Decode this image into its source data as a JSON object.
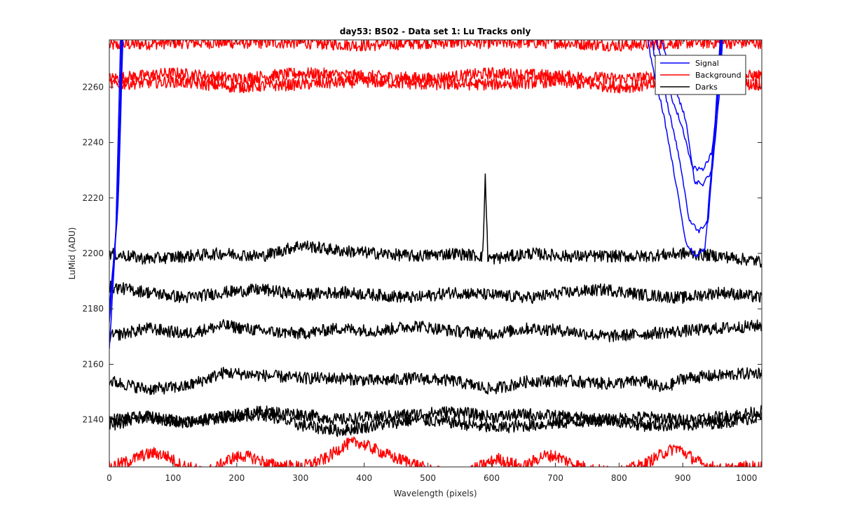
{
  "chart_data": {
    "type": "line",
    "title": "day53: BS02 - Data set 1: Lu Tracks only",
    "xlabel": "Wavelength (pixels)",
    "ylabel": "LuMid (ADU)",
    "xlim": [
      0,
      1024
    ],
    "ylim": [
      2123,
      2277
    ],
    "xticks": [
      0,
      100,
      200,
      300,
      400,
      500,
      600,
      700,
      800,
      900,
      1000
    ],
    "yticks": [
      2140,
      2160,
      2180,
      2200,
      2220,
      2240,
      2260
    ],
    "grid": false,
    "legend": {
      "placement": "top-right",
      "entries": [
        {
          "name": "Signal",
          "color": "#0000ff"
        },
        {
          "name": "Background",
          "color": "#ff0000"
        },
        {
          "name": "Darks",
          "color": "#000000"
        }
      ]
    },
    "series": [
      {
        "legend": "Signal",
        "color": "#0000ff",
        "x": [
          0,
          10,
          20,
          830,
          850,
          870,
          890,
          905,
          920,
          935,
          950,
          965
        ],
        "y": [
          2165,
          2205,
          2300,
          2300,
          2270,
          2250,
          2224,
          2204,
          2199,
          2202,
          2245,
          2300
        ]
      },
      {
        "legend": "Signal",
        "color": "#0000ff",
        "x": [
          0,
          12,
          22,
          835,
          855,
          875,
          895,
          910,
          925,
          940,
          952,
          966
        ],
        "y": [
          2175,
          2212,
          2300,
          2300,
          2272,
          2255,
          2234,
          2212,
          2208,
          2212,
          2248,
          2300
        ]
      },
      {
        "legend": "Signal",
        "color": "#0000ff",
        "x": [
          0,
          13,
          23,
          840,
          860,
          880,
          900,
          915,
          930,
          945,
          955,
          967
        ],
        "y": [
          2178,
          2215,
          2300,
          2300,
          2275,
          2258,
          2245,
          2231,
          2230,
          2236,
          2255,
          2300
        ]
      },
      {
        "legend": "Signal",
        "color": "#0000ff",
        "x": [
          0,
          14,
          24,
          845,
          865,
          885,
          905,
          918,
          932,
          946,
          957,
          968
        ],
        "y": [
          2180,
          2218,
          2300,
          2300,
          2278,
          2262,
          2248,
          2226,
          2225,
          2230,
          2256,
          2300
        ]
      },
      {
        "legend": "Background",
        "color": "#ff0000",
        "x": [
          0,
          100,
          200,
          300,
          400,
          500,
          600,
          700,
          800,
          900,
          1024
        ],
        "y": [
          2275,
          2276,
          2276,
          2276,
          2275,
          2276,
          2276,
          2276,
          2275,
          2276,
          2276
        ]
      },
      {
        "legend": "Background",
        "color": "#ff0000",
        "x": [
          0,
          100,
          200,
          300,
          400,
          500,
          600,
          700,
          800,
          900,
          1024
        ],
        "y": [
          2263,
          2265,
          2263,
          2265,
          2264,
          2263,
          2265,
          2264,
          2263,
          2264,
          2264
        ]
      },
      {
        "legend": "Background",
        "color": "#ff0000",
        "x": [
          0,
          100,
          200,
          300,
          400,
          500,
          600,
          700,
          800,
          900,
          1024
        ],
        "y": [
          2261,
          2262,
          2260,
          2261,
          2262,
          2261,
          2261,
          2262,
          2260,
          2261,
          2261
        ]
      },
      {
        "legend": "Background",
        "color": "#ff0000",
        "x": [
          0,
          30,
          50,
          70,
          90,
          110,
          150,
          170,
          190,
          210,
          230,
          250,
          300,
          340,
          370,
          390,
          410,
          430,
          450,
          470,
          500,
          540,
          570,
          590,
          610,
          620,
          650,
          680,
          700,
          730,
          760,
          800,
          840,
          870,
          890,
          910,
          930,
          960,
          1000,
          1024
        ],
        "y": [
          2123,
          2125,
          2127,
          2128,
          2127,
          2124,
          2121,
          2123,
          2126,
          2127,
          2126,
          2124,
          2123,
          2126,
          2131,
          2132,
          2130,
          2128,
          2126,
          2125,
          2122,
          2120,
          2122,
          2124,
          2126,
          2125,
          2123,
          2127,
          2127,
          2124,
          2122,
          2121,
          2124,
          2128,
          2130,
          2127,
          2124,
          2122,
          2123,
          2123
        ]
      },
      {
        "legend": "Darks",
        "color": "#000000",
        "x": [
          0,
          60,
          120,
          180,
          240,
          300,
          360,
          420,
          480,
          540,
          586,
          590,
          594,
          600,
          660,
          720,
          780,
          840,
          900,
          960,
          1024
        ],
        "y": [
          2200,
          2198,
          2199,
          2200,
          2199,
          2203,
          2201,
          2200,
          2199,
          2200,
          2199,
          2228,
          2199,
          2198,
          2200,
          2199,
          2199,
          2199,
          2200,
          2199,
          2197
        ]
      },
      {
        "legend": "Darks",
        "color": "#000000",
        "x": [
          0,
          60,
          120,
          180,
          240,
          300,
          360,
          420,
          480,
          540,
          600,
          660,
          720,
          780,
          840,
          900,
          960,
          1024
        ],
        "y": [
          2188,
          2186,
          2184,
          2186,
          2187,
          2185,
          2186,
          2185,
          2184,
          2186,
          2185,
          2184,
          2186,
          2187,
          2185,
          2184,
          2186,
          2184
        ]
      },
      {
        "legend": "Darks",
        "color": "#000000",
        "x": [
          0,
          60,
          120,
          180,
          240,
          300,
          360,
          420,
          480,
          540,
          600,
          660,
          720,
          780,
          840,
          900,
          960,
          1024
        ],
        "y": [
          2170,
          2173,
          2171,
          2174,
          2172,
          2171,
          2173,
          2172,
          2174,
          2172,
          2171,
          2173,
          2172,
          2170,
          2171,
          2172,
          2173,
          2174
        ]
      },
      {
        "legend": "Darks",
        "color": "#000000",
        "x": [
          0,
          60,
          120,
          180,
          240,
          300,
          360,
          420,
          480,
          540,
          600,
          660,
          720,
          780,
          840,
          870,
          900,
          960,
          1024
        ],
        "y": [
          2154,
          2151,
          2152,
          2157,
          2156,
          2155,
          2155,
          2154,
          2155,
          2154,
          2151,
          2154,
          2154,
          2153,
          2154,
          2151,
          2155,
          2156,
          2157
        ]
      },
      {
        "legend": "Darks",
        "color": "#000000",
        "x": [
          0,
          60,
          120,
          180,
          240,
          300,
          360,
          420,
          480,
          540,
          600,
          660,
          720,
          780,
          840,
          900,
          960,
          1024
        ],
        "y": [
          2140,
          2141,
          2139,
          2141,
          2143,
          2142,
          2140,
          2141,
          2142,
          2143,
          2141,
          2142,
          2141,
          2140,
          2141,
          2140,
          2141,
          2143
        ]
      },
      {
        "legend": "Darks",
        "color": "#000000",
        "x": [
          0,
          60,
          120,
          180,
          240,
          300,
          360,
          420,
          480,
          540,
          600,
          660,
          720,
          780,
          840,
          900,
          960,
          1024
        ],
        "y": [
          2138,
          2141,
          2139,
          2141,
          2142,
          2138,
          2136,
          2138,
          2140,
          2139,
          2137,
          2138,
          2139,
          2140,
          2138,
          2138,
          2139,
          2141
        ]
      }
    ]
  }
}
